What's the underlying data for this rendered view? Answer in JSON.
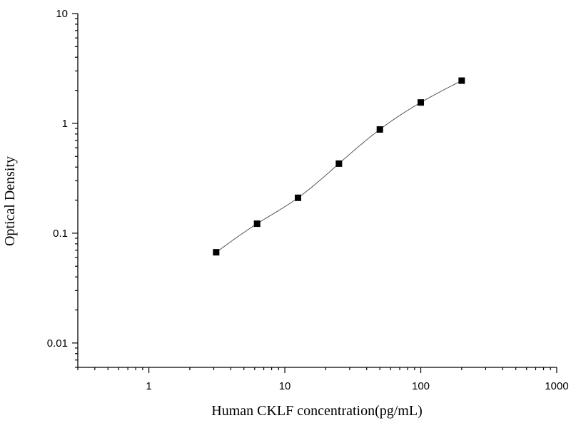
{
  "chart_data": {
    "type": "scatter",
    "title": "",
    "xlabel": "Human CKLF concentration(pg/mL)",
    "ylabel": "Optical Density",
    "xscale": "log",
    "yscale": "log",
    "xlim": [
      0.3,
      1000
    ],
    "ylim": [
      0.006,
      10
    ],
    "x_ticks": [
      {
        "value": 1,
        "label": "1"
      },
      {
        "value": 10,
        "label": "10"
      },
      {
        "value": 100,
        "label": "100"
      },
      {
        "value": 1000,
        "label": "1000"
      }
    ],
    "y_ticks": [
      {
        "value": 0.01,
        "label": "0.01"
      },
      {
        "value": 0.1,
        "label": "0.1"
      },
      {
        "value": 1,
        "label": "1"
      },
      {
        "value": 10,
        "label": "10"
      }
    ],
    "grid": false,
    "legend": "none",
    "series": [
      {
        "marker": "square",
        "color": "#000000",
        "points": [
          {
            "x": 3.125,
            "y": 0.067
          },
          {
            "x": 6.25,
            "y": 0.122
          },
          {
            "x": 12.5,
            "y": 0.21
          },
          {
            "x": 25,
            "y": 0.43
          },
          {
            "x": 50,
            "y": 0.88
          },
          {
            "x": 100,
            "y": 1.55
          },
          {
            "x": 200,
            "y": 2.45
          }
        ]
      }
    ],
    "fit_curve": true
  }
}
